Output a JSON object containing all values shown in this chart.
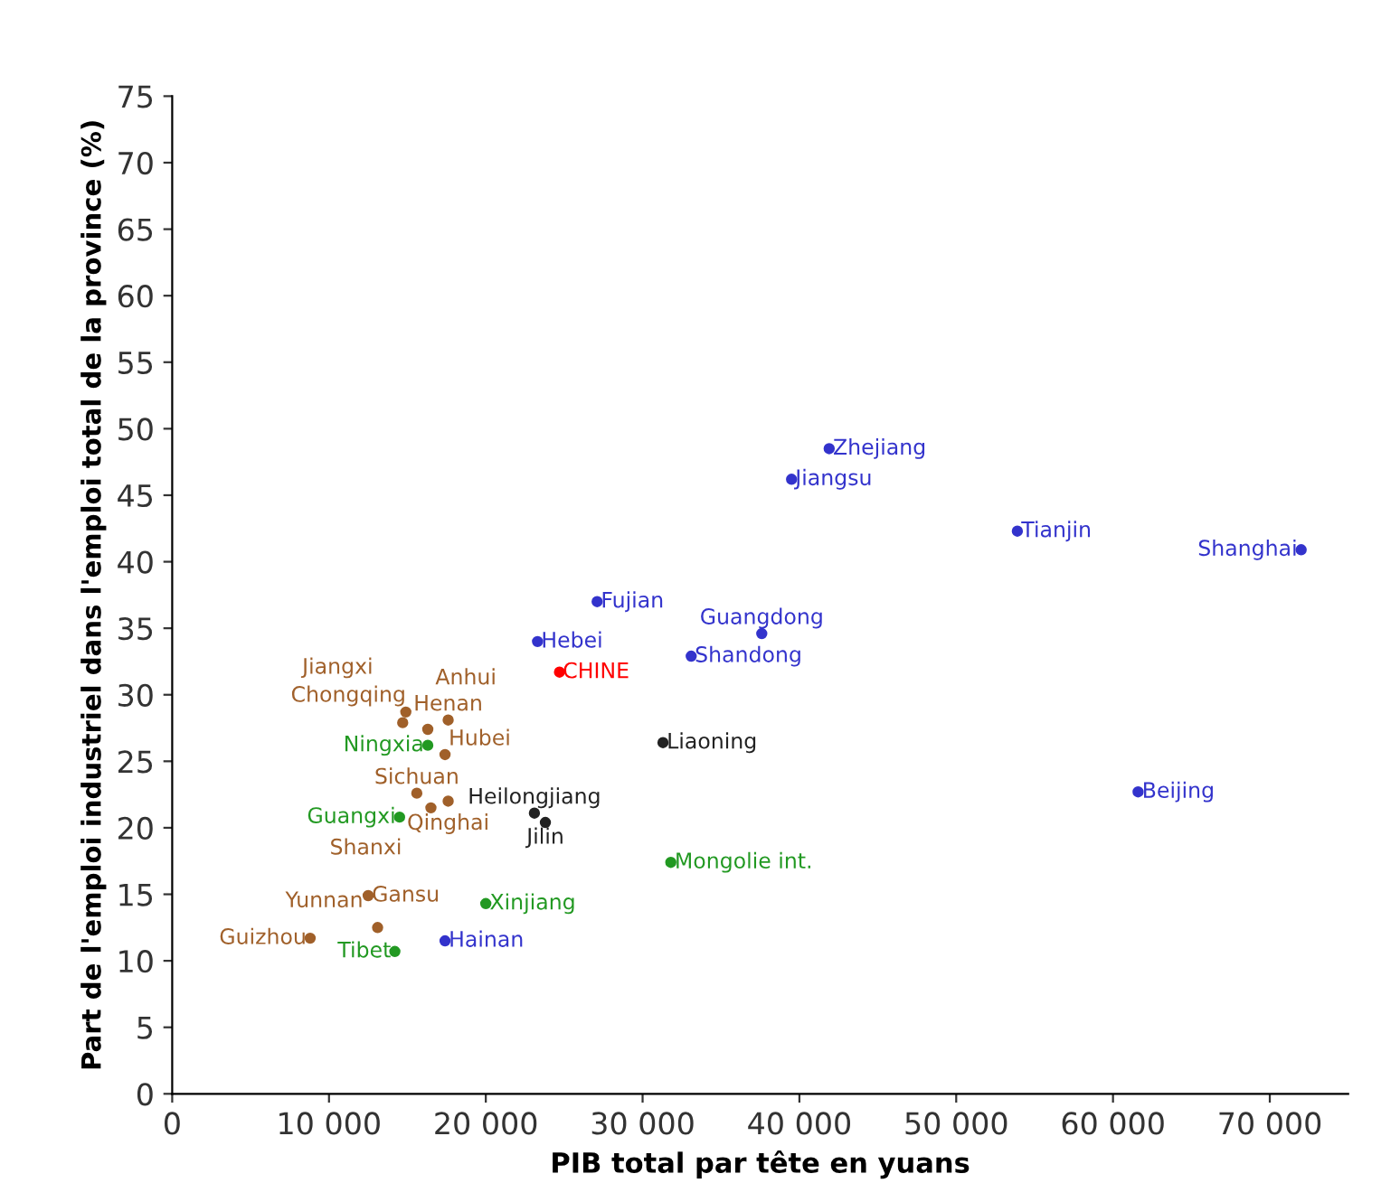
{
  "chart_data": {
    "type": "scatter",
    "xlabel": "PIB total par tête en yuans",
    "ylabel": "Part de l'emploi industriel dans l'emploi total de la province (%)",
    "marker": "circle",
    "legend": false,
    "grid": false,
    "xlim": [
      0,
      75000
    ],
    "ylim": [
      0,
      75
    ],
    "xticks": [
      0,
      {
        "value": 10000,
        "label": "10 000"
      },
      {
        "value": 20000,
        "label": "20 000"
      },
      {
        "value": 30000,
        "label": "30 000"
      },
      {
        "value": 40000,
        "label": "40 000"
      },
      {
        "value": 50000,
        "label": "50 000"
      },
      {
        "value": 60000,
        "label": "60 000"
      },
      {
        "value": 70000,
        "label": "70 000"
      }
    ],
    "yticks": [
      0,
      5,
      10,
      15,
      20,
      25,
      30,
      35,
      40,
      45,
      50,
      55,
      60,
      65,
      70,
      75
    ],
    "series": [
      {
        "color": "#3333cc",
        "x": [
          41900,
          39500,
          53900,
          72000,
          27100,
          37600,
          23300,
          33100,
          61600,
          17400
        ],
        "values": [
          48.5,
          46.2,
          42.3,
          40.9,
          37.0,
          34.6,
          34.0,
          32.9,
          22.7,
          11.5
        ],
        "value_labels": [
          "Zhejiang",
          "Jiangsu",
          "Tianjin",
          "Shanghai",
          "Fujian",
          "Guangdong",
          "Hebei",
          "Shandong",
          "Beijing",
          "Hainan"
        ]
      },
      {
        "color": "#222222",
        "x": [
          31300,
          23100,
          23800
        ],
        "values": [
          26.4,
          21.1,
          20.4
        ],
        "value_labels": [
          "Liaoning",
          "Heilongjiang",
          "Jilin"
        ]
      },
      {
        "color": "#229922",
        "x": [
          31800,
          20000,
          14200,
          16300,
          14500
        ],
        "values": [
          17.4,
          14.3,
          10.7,
          26.2,
          20.8
        ],
        "value_labels": [
          "Mongolie int.",
          "Xinjiang",
          "Tibet",
          "Ningxia",
          "Guangxi"
        ]
      },
      {
        "color": "#a0602a",
        "x": [
          14900,
          14700,
          17600,
          16300,
          17400,
          15600,
          17600,
          16500,
          12500,
          13100,
          8800
        ],
        "values": [
          28.7,
          27.9,
          28.1,
          27.4,
          25.5,
          22.6,
          22.0,
          21.5,
          14.9,
          12.5,
          11.7
        ],
        "value_labels": [
          "Jiangxi",
          "Anhui",
          "Henan",
          "Chongqing",
          "Hubei",
          "Sichuan",
          "Qinghai",
          "Shanxi",
          "Gansu",
          "Yunnan",
          "Guizhou"
        ]
      },
      {
        "color": "#ff0000",
        "x": [
          24700
        ],
        "values": [
          31.7
        ],
        "value_labels": [
          "CHINE"
        ]
      }
    ]
  }
}
